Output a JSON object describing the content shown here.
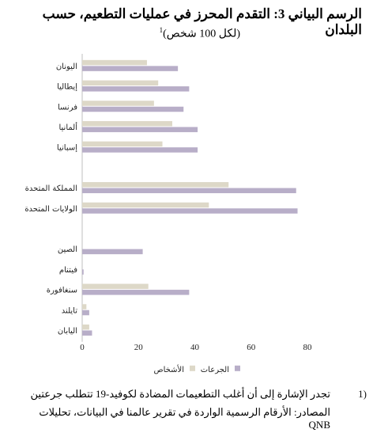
{
  "title": "الرسم البياني 3: التقدم المحرز في عمليات التطعيم، حسب البلدان",
  "subtitle": "(لكل 100 شخص)",
  "subtitle_sup": "1",
  "chart_data": {
    "type": "bar",
    "orientation": "horizontal",
    "categories": [
      "اليونان",
      "إيطاليا",
      "فرنسا",
      "ألمانيا",
      "إسبانيا",
      "",
      "المملكة المتحدة",
      "الولايات المتحدة",
      "",
      "الصين",
      "فيتنام",
      "سنغافورة",
      "تايلند",
      "اليابان"
    ],
    "series": [
      {
        "name": "الأشخاص",
        "color": "#ddd8c8",
        "values": [
          23,
          27,
          25.5,
          32,
          28.5,
          null,
          52,
          45,
          null,
          0,
          0,
          23.5,
          1.5,
          2.5
        ]
      },
      {
        "name": "الجرعات",
        "color": "#b8aec8",
        "values": [
          34,
          38,
          36,
          41,
          41,
          null,
          76,
          76.5,
          null,
          21.5,
          0.5,
          38,
          2.5,
          3.5
        ]
      }
    ],
    "xlim": [
      0,
      80
    ],
    "xticks": [
      0,
      20,
      40,
      60,
      80
    ],
    "legend_position": "bottom"
  },
  "footnotes": {
    "note_number": "1)",
    "note_text": "تجدر الإشارة إلى أن أغلب التطعيمات المضادة لكوفيد-19 تتطلب جرعتين",
    "source_text": "المصادر: الأرقام الرسمية الواردة في تقرير عالمنا في البيانات، تحليلات QNB"
  }
}
